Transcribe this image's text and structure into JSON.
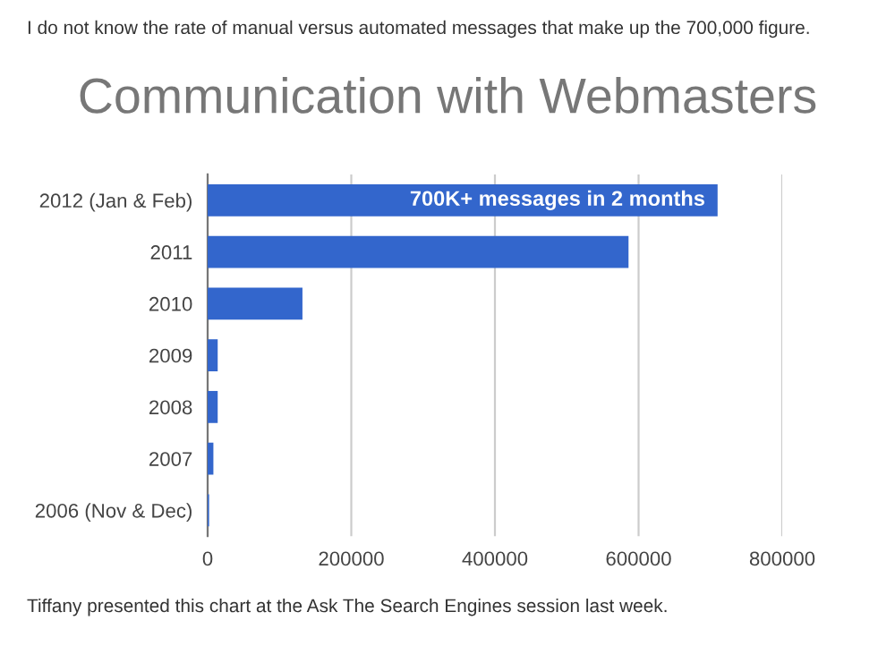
{
  "chart_data": {
    "type": "bar",
    "orientation": "horizontal",
    "title": "Communication with Webmasters",
    "categories": [
      "2012 (Jan & Feb)",
      "2011",
      "2010",
      "2009",
      "2008",
      "2007",
      "2006 (Nov & Dec)"
    ],
    "values": [
      710000,
      586000,
      132000,
      14000,
      14000,
      8000,
      2000
    ],
    "color": "#3366cc",
    "xlim": [
      0,
      800000
    ],
    "xticks": [
      0,
      200000,
      400000,
      600000,
      800000
    ],
    "grid": "x",
    "annotations": [
      {
        "text": "700K+ messages in 2 months",
        "x": 710000,
        "y": "2012 (Jan & Feb)"
      },
      "I do not know the rate of manual versus automated messages that make up the 700,000 figure.",
      "Tiffany presented this chart at the Ask The Search Engines session last week."
    ]
  }
}
